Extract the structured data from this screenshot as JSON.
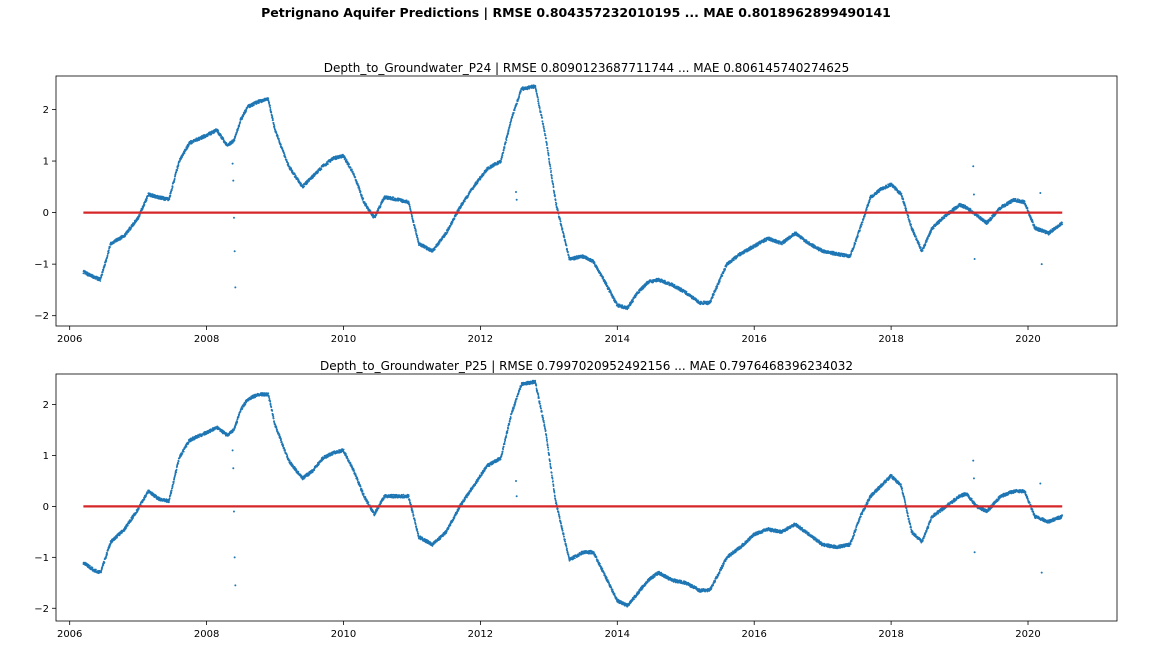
{
  "figure": {
    "suptitle": "Petrignano Aquifer Predictions | RMSE 0.804357232010195 ... MAE 0.8018962899490141"
  },
  "colors": {
    "scatter": "#1f77b4",
    "prediction_line": "#d62728"
  },
  "chart_data": [
    {
      "type": "scatter",
      "title": "Depth_to_Groundwater_P24 | RMSE 0.8090123687711744 ... MAE 0.806145740274625",
      "xlabel": "",
      "ylabel": "",
      "xlim": [
        2005.8,
        2021.3
      ],
      "ylim": [
        -2.2,
        2.65
      ],
      "x_ticks": [
        2006,
        2008,
        2010,
        2012,
        2014,
        2016,
        2018,
        2020
      ],
      "y_ticks": [
        -2,
        -1,
        0,
        1,
        2
      ],
      "grid": false,
      "legend": "none",
      "series": [
        {
          "kind": "points",
          "x": [
            2006.2,
            2006.35,
            2006.45,
            2006.6,
            2006.8,
            2007.0,
            2007.15,
            2007.3,
            2007.45,
            2007.6,
            2007.75,
            2008.0,
            2008.15,
            2008.3,
            2008.4,
            2008.5,
            2008.6,
            2008.75,
            2008.9,
            2009.0,
            2009.2,
            2009.4,
            2009.55,
            2009.7,
            2009.85,
            2010.0,
            2010.15,
            2010.3,
            2010.45,
            2010.6,
            2010.8,
            2010.95,
            2011.1,
            2011.3,
            2011.5,
            2011.7,
            2011.9,
            2012.1,
            2012.3,
            2012.45,
            2012.6,
            2012.8,
            2012.95,
            2013.1,
            2013.3,
            2013.5,
            2013.65,
            2013.8,
            2014.0,
            2014.15,
            2014.3,
            2014.45,
            2014.6,
            2014.8,
            2015.0,
            2015.2,
            2015.35,
            2015.45,
            2015.6,
            2015.8,
            2016.0,
            2016.2,
            2016.4,
            2016.6,
            2016.8,
            2017.0,
            2017.2,
            2017.4,
            2017.55,
            2017.7,
            2017.85,
            2018.0,
            2018.15,
            2018.3,
            2018.45,
            2018.6,
            2018.8,
            2019.0,
            2019.1,
            2019.25,
            2019.4,
            2019.6,
            2019.8,
            2019.95,
            2020.1,
            2020.3,
            2020.5
          ],
          "y": [
            -1.15,
            -1.25,
            -1.3,
            -0.6,
            -0.45,
            -0.1,
            0.35,
            0.3,
            0.25,
            1.0,
            1.35,
            1.5,
            1.6,
            1.3,
            1.4,
            1.8,
            2.05,
            2.15,
            2.2,
            1.6,
            0.9,
            0.5,
            0.7,
            0.9,
            1.05,
            1.1,
            0.75,
            0.2,
            -0.1,
            0.3,
            0.25,
            0.2,
            -0.6,
            -0.75,
            -0.4,
            0.1,
            0.5,
            0.85,
            1.0,
            1.8,
            2.4,
            2.45,
            1.5,
            0.2,
            -0.9,
            -0.85,
            -0.95,
            -1.3,
            -1.8,
            -1.85,
            -1.55,
            -1.35,
            -1.3,
            -1.4,
            -1.55,
            -1.75,
            -1.75,
            -1.45,
            -1.0,
            -0.8,
            -0.65,
            -0.5,
            -0.6,
            -0.4,
            -0.6,
            -0.75,
            -0.8,
            -0.85,
            -0.3,
            0.3,
            0.45,
            0.55,
            0.35,
            -0.3,
            -0.75,
            -0.3,
            -0.05,
            0.15,
            0.1,
            -0.05,
            -0.2,
            0.1,
            0.25,
            0.2,
            -0.3,
            -0.4,
            -0.2
          ]
        },
        {
          "kind": "outliers",
          "x": [
            2008.38,
            2008.39,
            2008.4,
            2008.41,
            2008.42,
            2012.52,
            2012.53,
            2019.2,
            2019.21,
            2019.22,
            2020.18,
            2020.2
          ],
          "y": [
            0.95,
            0.62,
            -0.1,
            -0.75,
            -1.45,
            0.4,
            0.25,
            0.9,
            0.35,
            -0.9,
            0.38,
            -1.0
          ]
        },
        {
          "kind": "prediction",
          "x": [
            2006.2,
            2020.5
          ],
          "y": [
            0.0,
            0.0
          ]
        }
      ]
    },
    {
      "type": "scatter",
      "title": "Depth_to_Groundwater_P25 | RMSE 0.7997020952492156 ... MAE 0.7976468396234032",
      "xlabel": "",
      "ylabel": "",
      "xlim": [
        2005.8,
        2021.3
      ],
      "ylim": [
        -2.25,
        2.6
      ],
      "x_ticks": [
        2006,
        2008,
        2010,
        2012,
        2014,
        2016,
        2018,
        2020
      ],
      "y_ticks": [
        -2,
        -1,
        0,
        1,
        2
      ],
      "grid": false,
      "legend": "none",
      "series": [
        {
          "kind": "points",
          "x": [
            2006.2,
            2006.35,
            2006.45,
            2006.6,
            2006.8,
            2007.0,
            2007.15,
            2007.3,
            2007.45,
            2007.6,
            2007.75,
            2008.0,
            2008.15,
            2008.3,
            2008.4,
            2008.5,
            2008.6,
            2008.75,
            2008.9,
            2009.0,
            2009.2,
            2009.4,
            2009.55,
            2009.7,
            2009.85,
            2010.0,
            2010.15,
            2010.3,
            2010.45,
            2010.6,
            2010.8,
            2010.95,
            2011.1,
            2011.3,
            2011.5,
            2011.7,
            2011.9,
            2012.1,
            2012.3,
            2012.45,
            2012.6,
            2012.8,
            2012.95,
            2013.1,
            2013.3,
            2013.5,
            2013.65,
            2013.8,
            2014.0,
            2014.15,
            2014.3,
            2014.45,
            2014.6,
            2014.8,
            2015.0,
            2015.2,
            2015.35,
            2015.45,
            2015.6,
            2015.8,
            2016.0,
            2016.2,
            2016.4,
            2016.6,
            2016.8,
            2017.0,
            2017.2,
            2017.4,
            2017.55,
            2017.7,
            2017.85,
            2018.0,
            2018.15,
            2018.3,
            2018.45,
            2018.6,
            2018.8,
            2019.0,
            2019.1,
            2019.25,
            2019.4,
            2019.6,
            2019.8,
            2019.95,
            2020.1,
            2020.3,
            2020.5
          ],
          "y": [
            -1.1,
            -1.25,
            -1.3,
            -0.7,
            -0.45,
            -0.05,
            0.3,
            0.15,
            0.1,
            0.95,
            1.3,
            1.45,
            1.55,
            1.4,
            1.5,
            1.9,
            2.1,
            2.2,
            2.2,
            1.6,
            0.9,
            0.55,
            0.7,
            0.95,
            1.05,
            1.1,
            0.7,
            0.2,
            -0.15,
            0.2,
            0.2,
            0.2,
            -0.6,
            -0.75,
            -0.5,
            0.0,
            0.4,
            0.8,
            0.95,
            1.8,
            2.4,
            2.45,
            1.5,
            0.1,
            -1.05,
            -0.9,
            -0.9,
            -1.3,
            -1.85,
            -1.95,
            -1.7,
            -1.45,
            -1.3,
            -1.45,
            -1.5,
            -1.65,
            -1.65,
            -1.4,
            -1.0,
            -0.8,
            -0.55,
            -0.45,
            -0.5,
            -0.35,
            -0.55,
            -0.75,
            -0.8,
            -0.75,
            -0.2,
            0.2,
            0.4,
            0.6,
            0.4,
            -0.5,
            -0.7,
            -0.2,
            0.0,
            0.2,
            0.25,
            0.0,
            -0.1,
            0.2,
            0.3,
            0.3,
            -0.2,
            -0.3,
            -0.2
          ]
        },
        {
          "kind": "outliers",
          "x": [
            2008.38,
            2008.39,
            2008.4,
            2008.41,
            2008.42,
            2012.52,
            2012.53,
            2019.2,
            2019.21,
            2019.22,
            2020.18,
            2020.2
          ],
          "y": [
            1.1,
            0.75,
            -0.1,
            -1.0,
            -1.55,
            0.5,
            0.2,
            0.9,
            0.55,
            -0.9,
            0.45,
            -1.3
          ]
        },
        {
          "kind": "prediction",
          "x": [
            2006.2,
            2020.5
          ],
          "y": [
            0.0,
            0.0
          ]
        }
      ]
    }
  ]
}
